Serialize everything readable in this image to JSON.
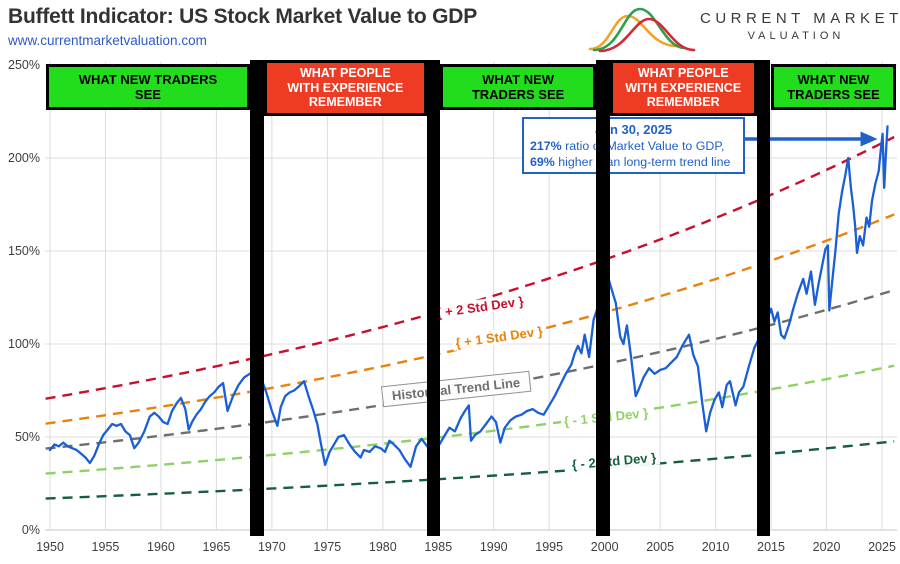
{
  "header": {
    "title": "Buffett Indicator: US Stock Market Value to GDP",
    "url": "www.currentmarketvaluation.com"
  },
  "logo": {
    "line1": "CURRENT MARKET",
    "line2": "VALUATION",
    "curve_colors": {
      "green": "#2ca04d",
      "orange": "#f0a32a",
      "red": "#d62839"
    }
  },
  "annotation": {
    "date": "Jun 30, 2025",
    "ratio_bold": "217%",
    "ratio_text": " ratio of Market Value to GDP,",
    "trend_bold": "69%",
    "trend_text": " higher than long-term trend line",
    "accent_color": "#2161c8"
  },
  "regime_banners": [
    {
      "type": "green",
      "lines": [
        "WHAT NEW TRADERS",
        "SEE"
      ],
      "year_span": [
        1949.6,
        1968.05
      ]
    },
    {
      "type": "red",
      "lines": [
        "WHAT PEOPLE",
        "WITH EXPERIENCE",
        "REMEMBER"
      ],
      "year_span": [
        1969.3,
        1983.95
      ]
    },
    {
      "type": "green",
      "lines": [
        "WHAT NEW",
        "TRADERS SEE"
      ],
      "year_span": [
        1985.15,
        1999.25
      ]
    },
    {
      "type": "red",
      "lines": [
        "WHAT PEOPLE",
        "WITH EXPERIENCE",
        "REMEMBER"
      ],
      "year_span": [
        2000.45,
        2013.7
      ]
    },
    {
      "type": "green",
      "lines": [
        "WHAT NEW",
        "TRADERS SEE"
      ],
      "year_span": [
        2014.95,
        2026.3
      ]
    }
  ],
  "black_bars": {
    "year_spans": [
      [
        1968.05,
        1969.3
      ],
      [
        1983.95,
        1985.15
      ],
      [
        1999.25,
        2000.45
      ],
      [
        2013.7,
        2014.95
      ]
    ]
  },
  "colors": {
    "banner_green": "#22dd1c",
    "banner_red": "#ee3b24",
    "series_blue": "#1a5fd6",
    "gridline": "#dcdcdc",
    "axis_text": "#3e3e3e"
  },
  "chart_data": {
    "type": "line",
    "title": "Buffett Indicator: US Stock Market Value to GDP",
    "xlabel": "",
    "ylabel": "",
    "xlim": [
      1949.6,
      2026.3
    ],
    "ylim": [
      0,
      250
    ],
    "grid": true,
    "x_ticks": [
      1950,
      1955,
      1960,
      1965,
      1970,
      1975,
      1980,
      1985,
      1990,
      1995,
      2000,
      2005,
      2010,
      2015,
      2020,
      2025
    ],
    "y_ticks": [
      0,
      50,
      100,
      150,
      200,
      250
    ],
    "y_tick_suffix": "%",
    "series": [
      {
        "name": "US Stock Market Value to GDP",
        "color": "#1a5fd6",
        "points": [
          [
            1950.0,
            43
          ],
          [
            1950.4,
            46
          ],
          [
            1950.8,
            45
          ],
          [
            1951.2,
            47
          ],
          [
            1951.6,
            45
          ],
          [
            1952.0,
            44
          ],
          [
            1952.4,
            43
          ],
          [
            1952.8,
            41
          ],
          [
            1953.2,
            39
          ],
          [
            1953.6,
            36
          ],
          [
            1954.0,
            40
          ],
          [
            1954.4,
            46
          ],
          [
            1954.8,
            51
          ],
          [
            1955.2,
            54
          ],
          [
            1955.6,
            57
          ],
          [
            1956.0,
            56
          ],
          [
            1956.4,
            57
          ],
          [
            1956.8,
            53
          ],
          [
            1957.2,
            51
          ],
          [
            1957.6,
            44
          ],
          [
            1958.0,
            47
          ],
          [
            1958.5,
            53
          ],
          [
            1959.0,
            61
          ],
          [
            1959.4,
            63
          ],
          [
            1959.8,
            61
          ],
          [
            1960.2,
            58
          ],
          [
            1960.6,
            57
          ],
          [
            1961.0,
            64
          ],
          [
            1961.4,
            68
          ],
          [
            1961.8,
            71
          ],
          [
            1962.2,
            65
          ],
          [
            1962.5,
            54
          ],
          [
            1962.8,
            58
          ],
          [
            1963.2,
            62
          ],
          [
            1963.6,
            65
          ],
          [
            1964.0,
            69
          ],
          [
            1964.4,
            72
          ],
          [
            1964.8,
            74
          ],
          [
            1965.2,
            77
          ],
          [
            1965.6,
            79
          ],
          [
            1966.0,
            64
          ],
          [
            1966.5,
            72
          ],
          [
            1967.0,
            78
          ],
          [
            1967.5,
            82
          ],
          [
            1968.0,
            84
          ],
          [
            1968.5,
            86
          ],
          [
            1969.0,
            82
          ],
          [
            1969.5,
            74
          ],
          [
            1970.0,
            64
          ],
          [
            1970.5,
            56
          ],
          [
            1970.8,
            66
          ],
          [
            1971.2,
            72
          ],
          [
            1971.6,
            74
          ],
          [
            1972.0,
            75
          ],
          [
            1972.4,
            77
          ],
          [
            1972.9,
            80
          ],
          [
            1973.3,
            72
          ],
          [
            1973.7,
            65
          ],
          [
            1974.1,
            57
          ],
          [
            1974.4,
            47
          ],
          [
            1974.8,
            35
          ],
          [
            1975.2,
            42
          ],
          [
            1975.6,
            46
          ],
          [
            1976.0,
            50
          ],
          [
            1976.5,
            51
          ],
          [
            1977.0,
            46
          ],
          [
            1977.5,
            42
          ],
          [
            1978.0,
            39
          ],
          [
            1978.3,
            43
          ],
          [
            1978.8,
            42
          ],
          [
            1979.3,
            45
          ],
          [
            1979.8,
            44
          ],
          [
            1980.2,
            42
          ],
          [
            1980.6,
            48
          ],
          [
            1981.0,
            46
          ],
          [
            1981.5,
            43
          ],
          [
            1982.0,
            38
          ],
          [
            1982.5,
            34
          ],
          [
            1983.0,
            45
          ],
          [
            1983.5,
            49
          ],
          [
            1984.0,
            45
          ],
          [
            1984.5,
            41
          ],
          [
            1985.0,
            45
          ],
          [
            1985.5,
            50
          ],
          [
            1986.0,
            55
          ],
          [
            1986.5,
            53
          ],
          [
            1987.0,
            60
          ],
          [
            1987.4,
            64
          ],
          [
            1987.75,
            67
          ],
          [
            1987.95,
            48
          ],
          [
            1988.3,
            51
          ],
          [
            1988.8,
            53
          ],
          [
            1989.3,
            57
          ],
          [
            1989.8,
            61
          ],
          [
            1990.2,
            58
          ],
          [
            1990.6,
            47
          ],
          [
            1991.0,
            55
          ],
          [
            1991.5,
            59
          ],
          [
            1992.0,
            61
          ],
          [
            1992.5,
            62
          ],
          [
            1993.0,
            64
          ],
          [
            1993.5,
            65
          ],
          [
            1994.0,
            63
          ],
          [
            1994.5,
            62
          ],
          [
            1995.0,
            67
          ],
          [
            1995.5,
            72
          ],
          [
            1996.0,
            78
          ],
          [
            1996.5,
            84
          ],
          [
            1997.0,
            89
          ],
          [
            1997.3,
            95
          ],
          [
            1997.6,
            99
          ],
          [
            1997.9,
            95
          ],
          [
            1998.2,
            105
          ],
          [
            1998.6,
            93
          ],
          [
            1999.0,
            113
          ],
          [
            1999.4,
            120
          ],
          [
            1999.8,
            126
          ],
          [
            2000.1,
            143
          ],
          [
            2000.4,
            134
          ],
          [
            2000.7,
            128
          ],
          [
            2001.0,
            122
          ],
          [
            2001.4,
            104
          ],
          [
            2001.7,
            100
          ],
          [
            2002.0,
            110
          ],
          [
            2002.4,
            92
          ],
          [
            2002.8,
            72
          ],
          [
            2003.1,
            76
          ],
          [
            2003.5,
            82
          ],
          [
            2004.0,
            87
          ],
          [
            2004.5,
            84
          ],
          [
            2005.0,
            86
          ],
          [
            2005.5,
            87
          ],
          [
            2006.0,
            90
          ],
          [
            2006.5,
            93
          ],
          [
            2007.0,
            99
          ],
          [
            2007.6,
            105
          ],
          [
            2008.0,
            94
          ],
          [
            2008.4,
            88
          ],
          [
            2008.8,
            68
          ],
          [
            2009.15,
            53
          ],
          [
            2009.5,
            63
          ],
          [
            2009.9,
            70
          ],
          [
            2010.3,
            74
          ],
          [
            2010.6,
            66
          ],
          [
            2011.0,
            78
          ],
          [
            2011.3,
            80
          ],
          [
            2011.8,
            67
          ],
          [
            2012.1,
            74
          ],
          [
            2012.5,
            77
          ],
          [
            2013.0,
            88
          ],
          [
            2013.5,
            98
          ],
          [
            2014.0,
            104
          ],
          [
            2014.5,
            111
          ],
          [
            2015.0,
            119
          ],
          [
            2015.3,
            112
          ],
          [
            2015.6,
            117
          ],
          [
            2015.9,
            105
          ],
          [
            2016.2,
            103
          ],
          [
            2016.6,
            110
          ],
          [
            2017.0,
            119
          ],
          [
            2017.4,
            127
          ],
          [
            2017.9,
            135
          ],
          [
            2018.2,
            127
          ],
          [
            2018.6,
            139
          ],
          [
            2018.95,
            121
          ],
          [
            2019.3,
            133
          ],
          [
            2019.6,
            142
          ],
          [
            2019.9,
            151
          ],
          [
            2020.12,
            153
          ],
          [
            2020.25,
            118
          ],
          [
            2020.5,
            133
          ],
          [
            2020.8,
            150
          ],
          [
            2021.1,
            170
          ],
          [
            2021.4,
            182
          ],
          [
            2021.7,
            191
          ],
          [
            2021.95,
            200
          ],
          [
            2022.2,
            184
          ],
          [
            2022.4,
            174
          ],
          [
            2022.6,
            162
          ],
          [
            2022.75,
            149
          ],
          [
            2023.0,
            158
          ],
          [
            2023.3,
            153
          ],
          [
            2023.6,
            168
          ],
          [
            2023.85,
            163
          ],
          [
            2024.1,
            177
          ],
          [
            2024.4,
            186
          ],
          [
            2024.7,
            193
          ],
          [
            2024.9,
            205
          ],
          [
            2025.05,
            213
          ],
          [
            2025.2,
            184
          ],
          [
            2025.3,
            196
          ],
          [
            2025.4,
            207
          ],
          [
            2025.5,
            217
          ]
        ]
      }
    ],
    "trend_lines": [
      {
        "label": "{ + 2 Std Dev }",
        "color": "#c8102e",
        "pct_1950": 71,
        "pct_2025": 208,
        "label_year": 1988.8,
        "label_pct": 120,
        "label_rot": -8,
        "boxed": false
      },
      {
        "label": "{ + 1 Std Dev }",
        "color": "#e8820e",
        "pct_1950": 57.5,
        "pct_2025": 167,
        "label_year": 1990.5,
        "label_pct": 104,
        "label_rot": -8,
        "boxed": false
      },
      {
        "label": "Historical Trend Line",
        "color": "#6e6e6e",
        "pct_1950": 44,
        "pct_2025": 127,
        "label_year": 1986.6,
        "label_pct": 76,
        "label_rot": -6,
        "boxed": true
      },
      {
        "label": "{ - 1 Std Dev }",
        "color": "#8ed167",
        "pct_1950": 30.5,
        "pct_2025": 87,
        "label_year": 2000.1,
        "label_pct": 61,
        "label_rot": -6,
        "boxed": false
      },
      {
        "label": "{ - 2 Std Dev }",
        "color": "#15603c",
        "pct_1950": 17,
        "pct_2025": 47,
        "label_year": 2000.8,
        "label_pct": 37,
        "label_rot": -5,
        "boxed": false
      }
    ],
    "latest_point": {
      "year": 2025.5,
      "pct": 217
    }
  }
}
